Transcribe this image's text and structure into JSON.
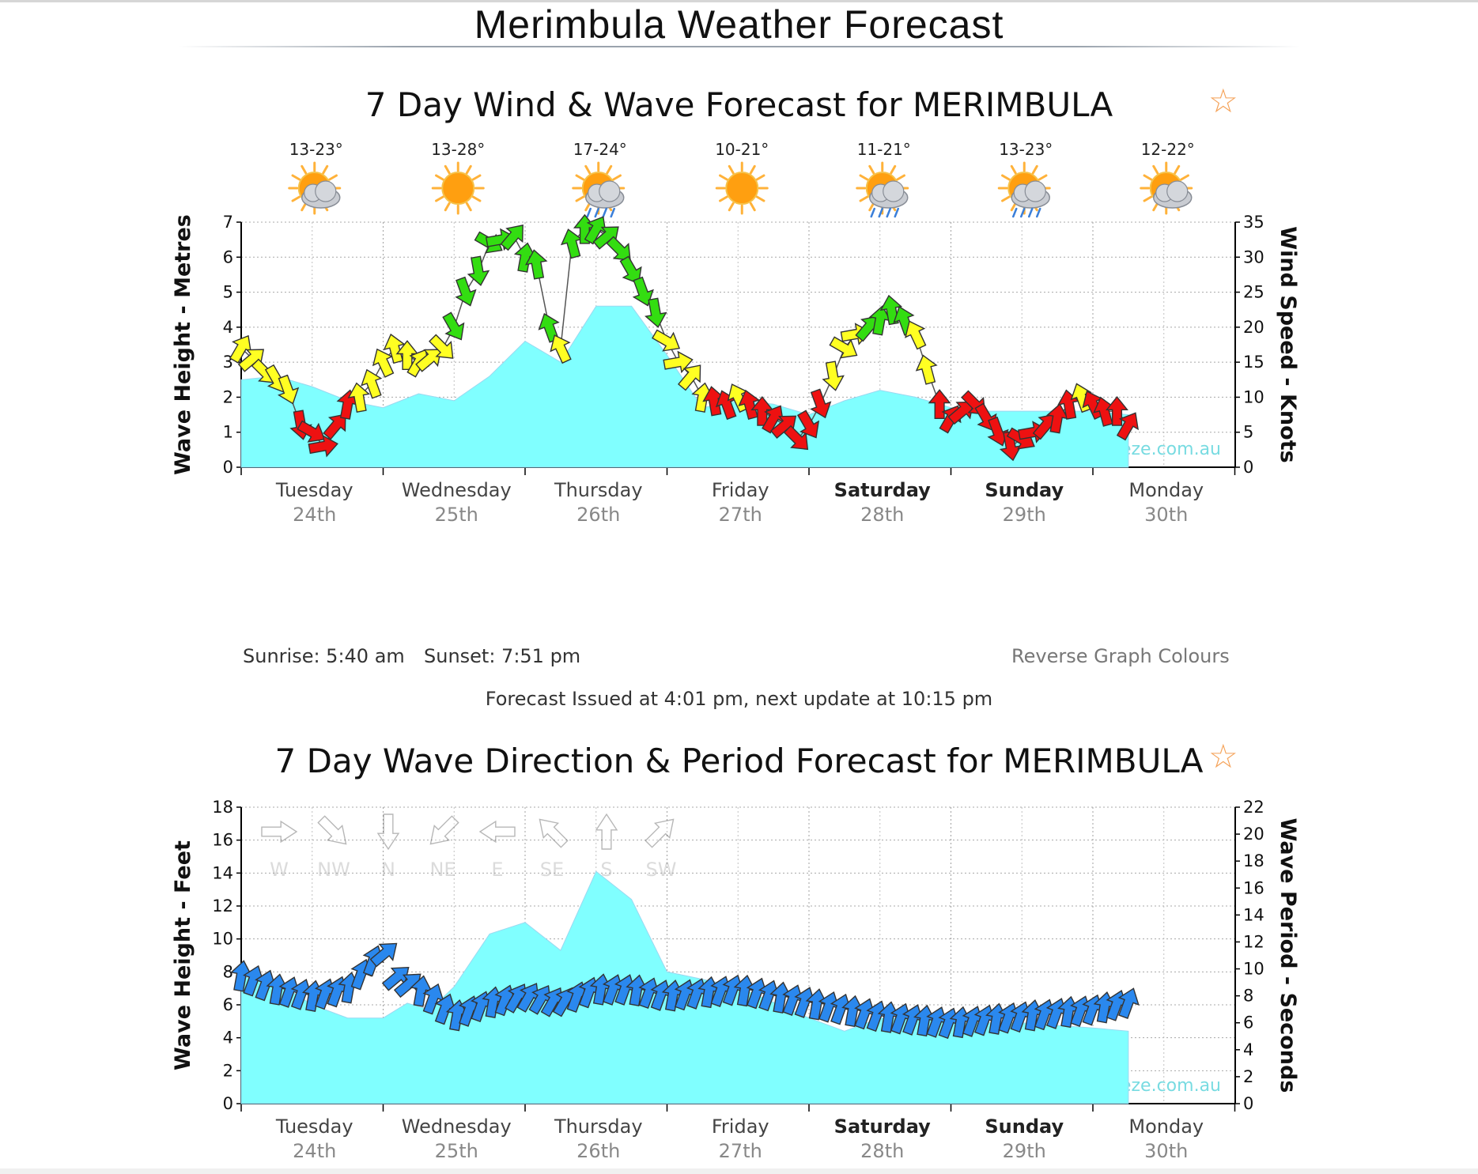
{
  "page": {
    "title": "Merimbula Weather Forecast"
  },
  "wind_wave": {
    "title": "7 Day Wind & Wave Forecast for MERIMBULA",
    "sunrise": "Sunrise: 5:40 am",
    "sunset": "Sunset: 7:51 pm",
    "reverse_link": "Reverse Graph Colours",
    "issued": "Forecast Issued at 4:01 pm, next update at 10:15 pm"
  },
  "wave_dir": {
    "title": "7 Day Wave Direction & Period Forecast for MERIMBULA"
  },
  "colors": {
    "wave_fill": "#80ffff",
    "wind_strong": "#33dd11",
    "wind_moderate": "#ffff22",
    "wind_light": "#ee1111",
    "swell_arrow": "#2a88ee",
    "star": "#f5a35a"
  },
  "days": [
    {
      "name": "Tuesday",
      "date": "24th",
      "bold": false,
      "temp": "13-23°",
      "icon": "sun-cloud-icon"
    },
    {
      "name": "Wednesday",
      "date": "25th",
      "bold": false,
      "temp": "13-28°",
      "icon": "sun-icon"
    },
    {
      "name": "Thursday",
      "date": "26th",
      "bold": false,
      "temp": "17-24°",
      "icon": "sun-rain-icon"
    },
    {
      "name": "Friday",
      "date": "27th",
      "bold": false,
      "temp": "10-21°",
      "icon": "sun-icon"
    },
    {
      "name": "Saturday",
      "date": "28th",
      "bold": true,
      "temp": "11-21°",
      "icon": "sun-rain-icon"
    },
    {
      "name": "Sunday",
      "date": "29th",
      "bold": true,
      "temp": "13-23°",
      "icon": "sun-rain-icon"
    },
    {
      "name": "Monday",
      "date": "30th",
      "bold": false,
      "temp": "12-22°",
      "icon": "sun-cloud-icon"
    }
  ],
  "chart_data": [
    {
      "type": "area",
      "ylabel": "Wave Height - Metres",
      "y2label": "Wind Speed - Knots",
      "ylim": [
        0,
        7
      ],
      "y2lim": [
        0,
        35
      ],
      "yticks": [
        0,
        1,
        2,
        3,
        4,
        5,
        6,
        7
      ],
      "y2ticks": [
        0,
        5,
        10,
        15,
        20,
        25,
        30,
        35
      ],
      "watermark": "www.seabreeze.com.au",
      "grid": true,
      "x_unit": "days from Tuesday 00:00",
      "wave_height": [
        [
          0,
          2.5
        ],
        [
          0.25,
          2.6
        ],
        [
          0.5,
          2.3
        ],
        [
          0.75,
          1.9
        ],
        [
          1.0,
          1.7
        ],
        [
          1.25,
          2.1
        ],
        [
          1.5,
          1.9
        ],
        [
          1.75,
          2.6
        ],
        [
          2.0,
          3.6
        ],
        [
          2.25,
          3.0
        ],
        [
          2.5,
          4.6
        ],
        [
          2.75,
          4.6
        ],
        [
          3.0,
          3.2
        ],
        [
          3.25,
          1.7
        ],
        [
          3.5,
          1.9
        ],
        [
          3.75,
          1.8
        ],
        [
          4.0,
          1.5
        ],
        [
          4.25,
          1.9
        ],
        [
          4.5,
          2.2
        ],
        [
          4.75,
          2.0
        ],
        [
          5.0,
          1.7
        ],
        [
          5.25,
          1.6
        ],
        [
          5.5,
          1.6
        ],
        [
          5.75,
          1.6
        ],
        [
          6.0,
          1.6
        ],
        [
          6.25,
          1.5
        ]
      ],
      "wind_speed": [
        [
          0,
          17
        ],
        [
          0.08,
          15.5
        ],
        [
          0.17,
          13.5
        ],
        [
          0.25,
          12.5
        ],
        [
          0.33,
          11
        ],
        [
          0.42,
          6
        ],
        [
          0.5,
          5
        ],
        [
          0.58,
          3
        ],
        [
          0.67,
          6
        ],
        [
          0.75,
          9
        ],
        [
          0.83,
          10
        ],
        [
          0.92,
          12
        ],
        [
          1.0,
          15
        ],
        [
          1.08,
          17
        ],
        [
          1.17,
          16
        ],
        [
          1.25,
          15
        ],
        [
          1.33,
          15.5
        ],
        [
          1.42,
          17
        ],
        [
          1.5,
          20
        ],
        [
          1.58,
          25
        ],
        [
          1.67,
          28
        ],
        [
          1.75,
          32
        ],
        [
          1.83,
          32.5
        ],
        [
          1.92,
          33
        ],
        [
          2.0,
          30
        ],
        [
          2.08,
          29
        ],
        [
          2.17,
          20
        ],
        [
          2.25,
          17
        ],
        [
          2.33,
          32
        ],
        [
          2.42,
          34
        ],
        [
          2.5,
          34
        ],
        [
          2.58,
          33
        ],
        [
          2.67,
          31
        ],
        [
          2.75,
          28
        ],
        [
          2.83,
          25
        ],
        [
          2.92,
          22
        ],
        [
          3.0,
          18
        ],
        [
          3.08,
          15
        ],
        [
          3.17,
          13
        ],
        [
          3.25,
          10
        ],
        [
          3.33,
          9.5
        ],
        [
          3.42,
          9
        ],
        [
          3.5,
          10
        ],
        [
          3.58,
          9
        ],
        [
          3.67,
          8
        ],
        [
          3.75,
          7
        ],
        [
          3.83,
          6
        ],
        [
          3.92,
          4
        ],
        [
          4.0,
          6
        ],
        [
          4.08,
          9
        ],
        [
          4.17,
          13
        ],
        [
          4.25,
          17
        ],
        [
          4.33,
          19
        ],
        [
          4.42,
          20
        ],
        [
          4.5,
          21
        ],
        [
          4.58,
          22.5
        ],
        [
          4.67,
          21
        ],
        [
          4.75,
          19
        ],
        [
          4.83,
          14
        ],
        [
          4.92,
          9
        ],
        [
          5.0,
          7
        ],
        [
          5.08,
          8
        ],
        [
          5.17,
          9
        ],
        [
          5.25,
          7
        ],
        [
          5.33,
          5
        ],
        [
          5.42,
          3
        ],
        [
          5.5,
          4
        ],
        [
          5.58,
          5
        ],
        [
          5.67,
          6
        ],
        [
          5.75,
          7
        ],
        [
          5.83,
          9
        ],
        [
          5.92,
          10
        ],
        [
          6.0,
          9
        ],
        [
          6.08,
          8
        ],
        [
          6.17,
          8
        ],
        [
          6.25,
          6
        ]
      ],
      "wind_bands": [
        {
          "color_key": "wind_light",
          "range_kts": [
            0,
            10
          ]
        },
        {
          "color_key": "wind_moderate",
          "range_kts": [
            10,
            20
          ]
        },
        {
          "color_key": "wind_strong",
          "range_kts": [
            20,
            40
          ]
        }
      ]
    },
    {
      "type": "area",
      "ylabel": "Wave Height - Feet",
      "y2label": "Wave Period - Seconds",
      "ylim": [
        0,
        18
      ],
      "y2lim": [
        0,
        22
      ],
      "yticks": [
        0,
        2,
        4,
        6,
        8,
        10,
        12,
        14,
        16,
        18
      ],
      "y2ticks": [
        0,
        2,
        4,
        6,
        8,
        10,
        12,
        14,
        16,
        18,
        20,
        22
      ],
      "watermark": "www.seabreeze.com.au",
      "grid": true,
      "x_unit": "days from Tuesday 00:00",
      "compass_legend": [
        "W",
        "NW",
        "N",
        "NE",
        "E",
        "SE",
        "S",
        "SW"
      ],
      "wave_height_ft": [
        [
          0,
          7.7
        ],
        [
          0.25,
          7.4
        ],
        [
          0.5,
          6.0
        ],
        [
          0.75,
          5.2
        ],
        [
          1.0,
          5.2
        ],
        [
          1.17,
          6.1
        ],
        [
          1.33,
          5.7
        ],
        [
          1.5,
          7.1
        ],
        [
          1.75,
          10.3
        ],
        [
          2.0,
          11.0
        ],
        [
          2.25,
          9.3
        ],
        [
          2.5,
          14.1
        ],
        [
          2.75,
          12.4
        ],
        [
          3.0,
          8.0
        ],
        [
          3.5,
          7.1
        ],
        [
          4.0,
          5.2
        ],
        [
          4.25,
          4.4
        ],
        [
          4.5,
          5.2
        ],
        [
          4.75,
          5.2
        ],
        [
          5.0,
          4.9
        ],
        [
          5.5,
          4.9
        ],
        [
          6.0,
          4.6
        ],
        [
          6.25,
          4.4
        ]
      ],
      "wave_period_s": [
        [
          0,
          9.5
        ],
        [
          0.25,
          8.5
        ],
        [
          0.5,
          8.0
        ],
        [
          0.75,
          8.5
        ],
        [
          1.0,
          11.5
        ],
        [
          1.08,
          9.5
        ],
        [
          1.33,
          8.0
        ],
        [
          1.5,
          6.5
        ],
        [
          1.75,
          7.5
        ],
        [
          2.0,
          8.0
        ],
        [
          2.25,
          7.5
        ],
        [
          2.5,
          8.5
        ],
        [
          2.75,
          8.5
        ],
        [
          3.0,
          8.0
        ],
        [
          3.5,
          8.5
        ],
        [
          4.0,
          7.5
        ],
        [
          4.5,
          6.5
        ],
        [
          5.0,
          6.0
        ],
        [
          5.5,
          6.5
        ],
        [
          6.0,
          7.0
        ],
        [
          6.25,
          7.5
        ]
      ]
    }
  ]
}
